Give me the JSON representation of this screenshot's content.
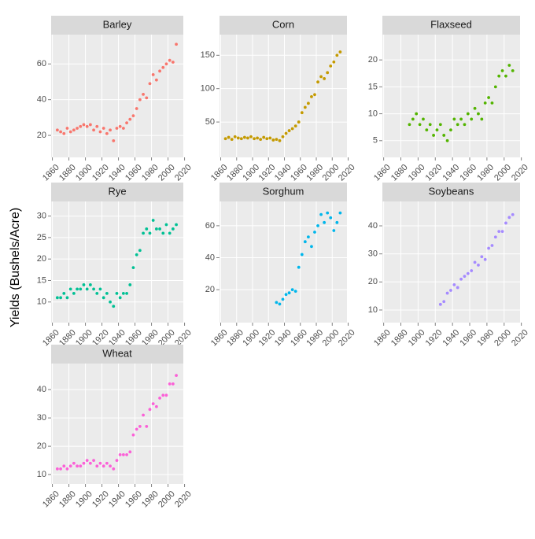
{
  "ylabel": "Yields (Bushels/Acre)",
  "chart_data": [
    {
      "type": "scatter",
      "title": "Barley",
      "color": "#F8766D",
      "x": [
        1866,
        1870,
        1874,
        1878,
        1882,
        1886,
        1890,
        1894,
        1898,
        1902,
        1906,
        1910,
        1914,
        1918,
        1922,
        1926,
        1930,
        1934,
        1938,
        1942,
        1946,
        1950,
        1954,
        1958,
        1962,
        1966,
        1970,
        1974,
        1978,
        1982,
        1986,
        1990,
        1994,
        1998,
        2002,
        2006,
        2010
      ],
      "values": [
        23,
        22,
        21,
        24,
        22,
        23,
        24,
        25,
        26,
        25,
        26,
        23,
        25,
        22,
        24,
        21,
        23,
        17,
        24,
        25,
        24,
        27,
        29,
        31,
        35,
        40,
        43,
        41,
        49,
        54,
        51,
        56,
        58,
        60,
        62,
        61,
        71
      ],
      "xlim": [
        1858.5,
        2018.5
      ],
      "ylim": [
        7.7,
        76.4
      ],
      "xticks": [
        1860,
        1880,
        1900,
        1920,
        1940,
        1960,
        1980,
        2000,
        2020
      ],
      "yticks": [
        20,
        40,
        60
      ]
    },
    {
      "type": "scatter",
      "title": "Corn",
      "color": "#C49A00",
      "x": [
        1866,
        1870,
        1874,
        1878,
        1882,
        1886,
        1890,
        1894,
        1898,
        1902,
        1906,
        1910,
        1914,
        1918,
        1922,
        1926,
        1930,
        1934,
        1938,
        1942,
        1946,
        1950,
        1954,
        1958,
        1962,
        1966,
        1970,
        1974,
        1978,
        1982,
        1986,
        1990,
        1994,
        1998,
        2002,
        2006,
        2010
      ],
      "values": [
        25,
        27,
        24,
        28,
        26,
        25,
        27,
        26,
        28,
        25,
        26,
        24,
        27,
        25,
        26,
        23,
        24,
        22,
        28,
        33,
        37,
        40,
        44,
        50,
        64,
        72,
        78,
        88,
        91,
        110,
        118,
        115,
        124,
        134,
        140,
        150,
        155
      ],
      "xlim": [
        1858.5,
        2018.5
      ],
      "ylim": [
        -3,
        181
      ],
      "xticks": [
        1860,
        1880,
        1900,
        1920,
        1940,
        1960,
        1980,
        2000,
        2020
      ],
      "yticks": [
        50,
        100,
        150
      ]
    },
    {
      "type": "scatter",
      "title": "Flaxseed",
      "color": "#53B400",
      "x": [
        1890,
        1894,
        1898,
        1902,
        1906,
        1910,
        1914,
        1918,
        1922,
        1926,
        1930,
        1934,
        1938,
        1942,
        1946,
        1950,
        1954,
        1958,
        1962,
        1966,
        1970,
        1974,
        1978,
        1982,
        1986,
        1990,
        1994,
        1998,
        2002,
        2006,
        2010
      ],
      "values": [
        8,
        9,
        10,
        8,
        9,
        7,
        8,
        6,
        7,
        8,
        6,
        5,
        7,
        9,
        8,
        9,
        8,
        10,
        9,
        11,
        10,
        9,
        12,
        13,
        12,
        15,
        17,
        18,
        17,
        19,
        18
      ],
      "xlim": [
        1858.5,
        2018.5
      ],
      "ylim": [
        1.9,
        24.7
      ],
      "xticks": [
        1860,
        1880,
        1900,
        1920,
        1940,
        1960,
        1980,
        2000,
        2020
      ],
      "yticks": [
        5,
        10,
        15,
        20
      ]
    },
    {
      "type": "scatter",
      "title": "Rye",
      "color": "#00C094",
      "x": [
        1866,
        1870,
        1874,
        1878,
        1882,
        1886,
        1890,
        1894,
        1898,
        1902,
        1906,
        1910,
        1914,
        1918,
        1922,
        1926,
        1930,
        1934,
        1938,
        1942,
        1946,
        1950,
        1954,
        1958,
        1962,
        1966,
        1970,
        1974,
        1978,
        1982,
        1986,
        1990,
        1994,
        1998,
        2002,
        2006,
        2010
      ],
      "values": [
        11,
        11,
        12,
        11,
        13,
        12,
        13,
        13,
        14,
        13,
        14,
        13,
        12,
        13,
        11,
        12,
        10,
        9,
        12,
        11,
        12,
        12,
        14,
        18,
        21,
        22,
        26,
        27,
        26,
        29,
        27,
        27,
        26,
        28,
        26,
        27,
        28
      ],
      "xlim": [
        1858.5,
        2018.5
      ],
      "ylim": [
        5.2,
        33.4
      ],
      "xticks": [
        1860,
        1880,
        1900,
        1920,
        1940,
        1960,
        1980,
        2000,
        2020
      ],
      "yticks": [
        10,
        15,
        20,
        25,
        30
      ]
    },
    {
      "type": "scatter",
      "title": "Sorghum",
      "color": "#00B6EB",
      "x": [
        1930,
        1934,
        1938,
        1942,
        1946,
        1950,
        1954,
        1958,
        1962,
        1966,
        1970,
        1974,
        1978,
        1982,
        1986,
        1990,
        1994,
        1998,
        2002,
        2006,
        2010
      ],
      "values": [
        12,
        11,
        14,
        17,
        18,
        20,
        19,
        34,
        42,
        50,
        53,
        47,
        56,
        60,
        67,
        62,
        68,
        65,
        57,
        62,
        68
      ],
      "xlim": [
        1858.5,
        2018.5
      ],
      "ylim": [
        -0.6,
        75.2
      ],
      "xticks": [
        1860,
        1880,
        1900,
        1920,
        1940,
        1960,
        1980,
        2000,
        2020
      ],
      "yticks": [
        20,
        40,
        60
      ]
    },
    {
      "type": "scatter",
      "title": "Soybeans",
      "color": "#A58AFF",
      "x": [
        1926,
        1930,
        1934,
        1938,
        1942,
        1946,
        1950,
        1954,
        1958,
        1962,
        1966,
        1970,
        1974,
        1978,
        1982,
        1986,
        1990,
        1994,
        1998,
        2002,
        2006,
        2010
      ],
      "values": [
        12,
        13,
        16,
        17,
        19,
        18,
        21,
        22,
        23,
        24,
        27,
        26,
        29,
        28,
        32,
        33,
        36,
        38,
        38,
        41,
        43,
        44
      ],
      "xlim": [
        1858.5,
        2018.5
      ],
      "ylim": [
        5.5,
        48.7
      ],
      "xticks": [
        1860,
        1880,
        1900,
        1920,
        1940,
        1960,
        1980,
        2000,
        2020
      ],
      "yticks": [
        10,
        20,
        30,
        40
      ]
    },
    {
      "type": "scatter",
      "title": "Wheat",
      "color": "#FB61D7",
      "x": [
        1866,
        1870,
        1874,
        1878,
        1882,
        1886,
        1890,
        1894,
        1898,
        1902,
        1906,
        1910,
        1914,
        1918,
        1922,
        1926,
        1930,
        1934,
        1938,
        1942,
        1946,
        1950,
        1954,
        1958,
        1962,
        1966,
        1970,
        1974,
        1978,
        1982,
        1986,
        1990,
        1994,
        1998,
        2002,
        2006,
        2010
      ],
      "values": [
        12,
        12,
        13,
        12,
        13,
        14,
        13,
        13,
        14,
        15,
        14,
        15,
        13,
        14,
        13,
        14,
        13,
        12,
        15,
        17,
        17,
        17,
        18,
        24,
        26,
        27,
        31,
        27,
        33,
        35,
        34,
        37,
        38,
        38,
        42,
        42,
        45
      ],
      "xlim": [
        1858.5,
        2018.5
      ],
      "ylim": [
        6.7,
        49.2
      ],
      "xticks": [
        1860,
        1880,
        1900,
        1920,
        1940,
        1960,
        1980,
        2000,
        2020
      ],
      "yticks": [
        10,
        20,
        30,
        40
      ]
    }
  ]
}
